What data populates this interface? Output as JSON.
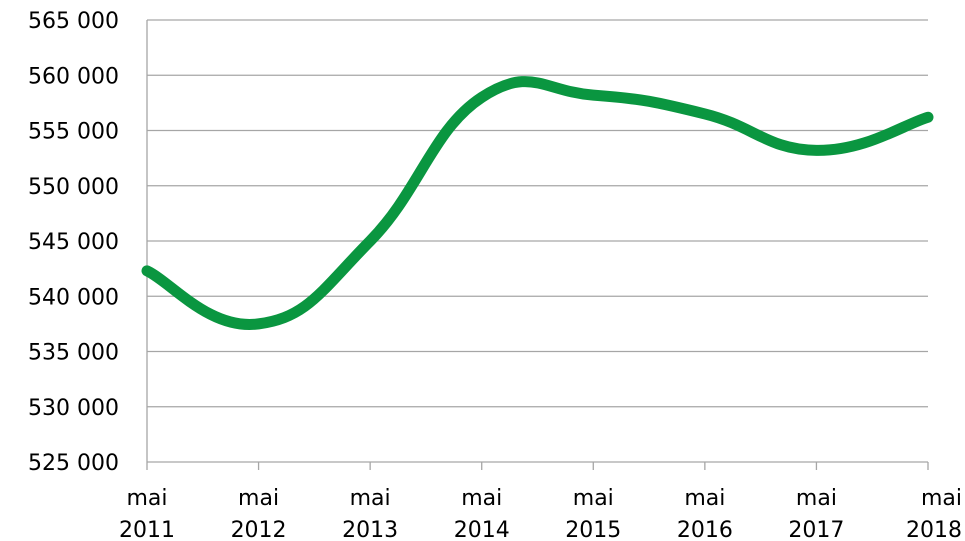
{
  "chart_data": {
    "type": "line",
    "title": "",
    "xlabel": "",
    "ylabel": "",
    "x": [
      {
        "month": "mai",
        "year": "2011"
      },
      {
        "month": "mai",
        "year": "2012"
      },
      {
        "month": "mai",
        "year": "2013"
      },
      {
        "month": "mai",
        "year": "2014"
      },
      {
        "month": "mai",
        "year": "2015"
      },
      {
        "month": "mai",
        "year": "2016"
      },
      {
        "month": "mai",
        "year": "2017"
      },
      {
        "month": "mai",
        "year": "2018"
      }
    ],
    "series": [
      {
        "values": [
          542300,
          537500,
          545000,
          558000,
          558200,
          556500,
          553200,
          556200
        ],
        "color": "#0a9640",
        "smooth": true
      }
    ],
    "ylim": [
      525000,
      565000
    ],
    "yticks": [
      525000,
      530000,
      535000,
      540000,
      545000,
      550000,
      555000,
      560000,
      565000
    ],
    "ytick_labels": [
      "525 000",
      "530 000",
      "535 000",
      "540 000",
      "545 000",
      "550 000",
      "555 000",
      "560 000",
      "565 000"
    ],
    "grid": true,
    "legend": "none"
  }
}
